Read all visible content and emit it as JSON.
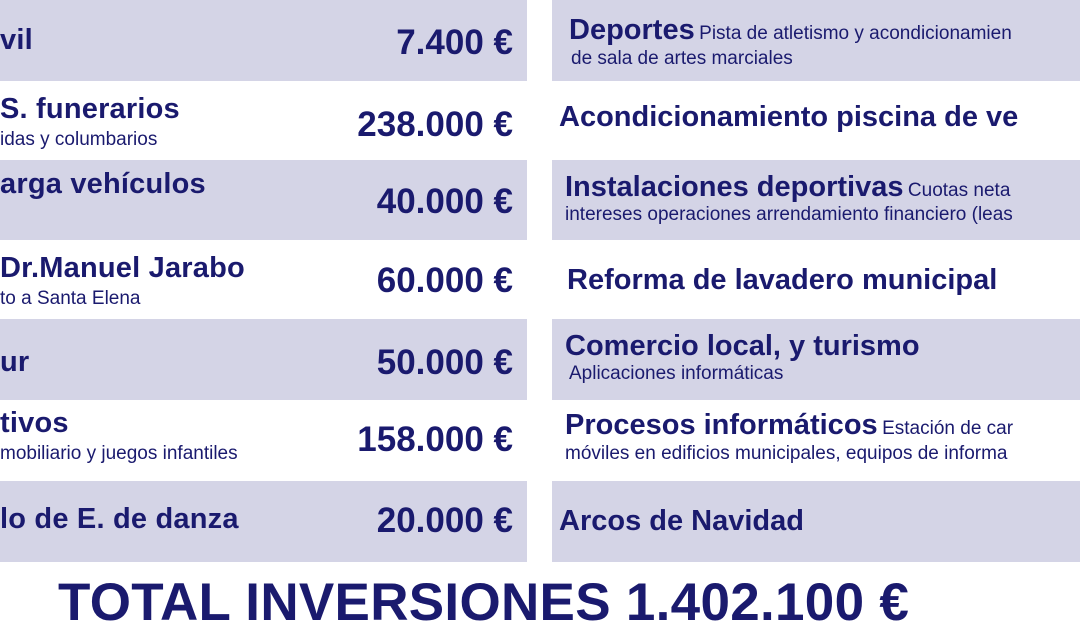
{
  "left": [
    {
      "title": "vil",
      "sub": "",
      "amount": "7.400 €"
    },
    {
      "title": "S. funerarios",
      "sub": "idas y columbarios",
      "amount": "238.000 €"
    },
    {
      "title": "arga vehículos",
      "sub": "",
      "amount": "40.000 €"
    },
    {
      "title": "Dr.Manuel Jarabo",
      "sub": "to a Santa Elena",
      "amount": "60.000 €"
    },
    {
      "title": "ur",
      "sub": "",
      "amount": "50.000 €"
    },
    {
      "title": "tivos",
      "sub": "mobiliario y juegos infantiles",
      "amount": "158.000 €"
    },
    {
      "title": "lo de E. de danza",
      "sub": "",
      "amount": "20.000 €"
    }
  ],
  "right": [
    {
      "title": "Deportes",
      "desc": "Pista de atletismo y acondicionamien",
      "line2": "de sala de artes marciales"
    },
    {
      "title": "Acondicionamiento piscina de ve",
      "desc": "",
      "line2": ""
    },
    {
      "title": "Instalaciones deportivas",
      "desc": "Cuotas neta",
      "line2": "intereses operaciones arrendamiento financiero (leas"
    },
    {
      "title": "Reforma de lavadero municipal",
      "desc": "",
      "line2": ""
    },
    {
      "title": "Comercio local, y turismo",
      "desc": "",
      "line2": "Aplicaciones informáticas"
    },
    {
      "title": "Procesos informáticos",
      "desc": "Estación de car",
      "line2": "móviles en edificios municipales, equipos de informa"
    },
    {
      "title": "Arcos de Navidad",
      "desc": "",
      "line2": ""
    }
  ],
  "total": "TOTAL INVERSIONES 1.402.100 €",
  "colors": {
    "text": "#1a1a6e",
    "band": "#d4d4e6",
    "background": "#ffffff"
  }
}
